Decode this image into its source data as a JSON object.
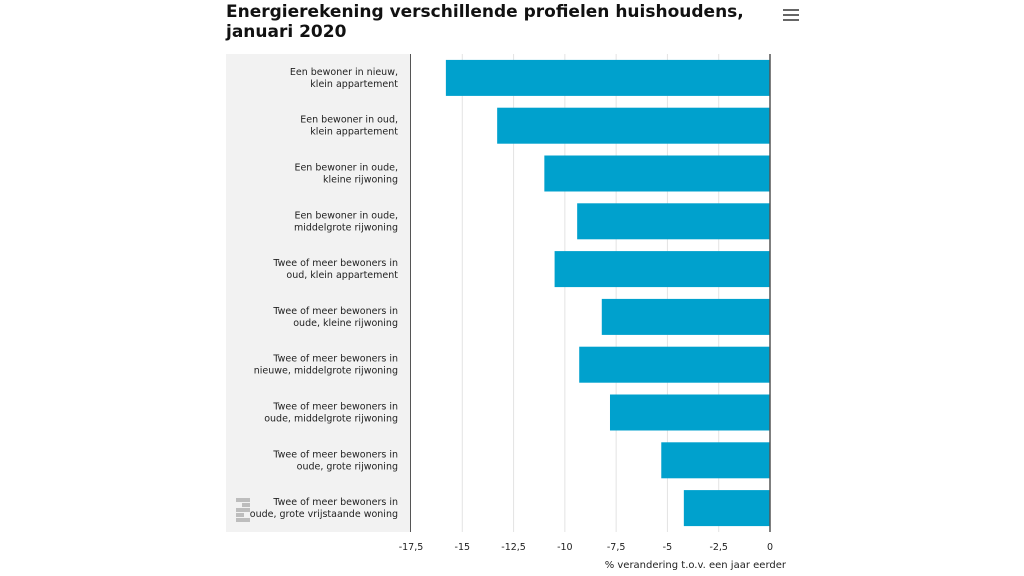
{
  "menu_icon": "hamburger-menu-icon",
  "logo_icon": "cbs-logo-icon",
  "chart_data": {
    "type": "bar",
    "orientation": "horizontal",
    "title": "Energierekening verschillende profielen huishoudens, januari 2020",
    "xlabel": "% verandering t.o.v. een jaar eerder",
    "ylabel": "",
    "xlim": [
      -17.5,
      0
    ],
    "xticks": [
      -17.5,
      -15,
      -12.5,
      -10,
      -7.5,
      -5,
      -2.5,
      0
    ],
    "tick_labels": [
      "-17,5",
      "-15",
      "-12,5",
      "-10",
      "-7,5",
      "-5",
      "-2,5",
      "0"
    ],
    "grid": true,
    "legend": "none",
    "bar_color": "#00A1CD",
    "categories": [
      [
        "Een bewoner in nieuw,",
        "klein appartement"
      ],
      [
        "Een bewoner in oud,",
        "klein appartement"
      ],
      [
        "Een bewoner in oude,",
        "kleine rijwoning"
      ],
      [
        "Een bewoner in oude,",
        "middelgrote rijwoning"
      ],
      [
        "Twee of meer bewoners in",
        "oud, klein appartement"
      ],
      [
        "Twee of meer bewoners in",
        "oude, kleine rijwoning"
      ],
      [
        "Twee of meer bewoners in",
        "nieuwe, middelgrote rijwoning"
      ],
      [
        "Twee of meer bewoners in",
        "oude, middelgrote rijwoning"
      ],
      [
        "Twee of meer bewoners in",
        "oude, grote rijwoning"
      ],
      [
        "Twee of meer bewoners in",
        "oude, grote vrijstaande woning"
      ]
    ],
    "values": [
      -15.8,
      -13.3,
      -11.0,
      -9.4,
      -10.5,
      -8.2,
      -9.3,
      -7.8,
      -5.3,
      -4.2
    ]
  }
}
